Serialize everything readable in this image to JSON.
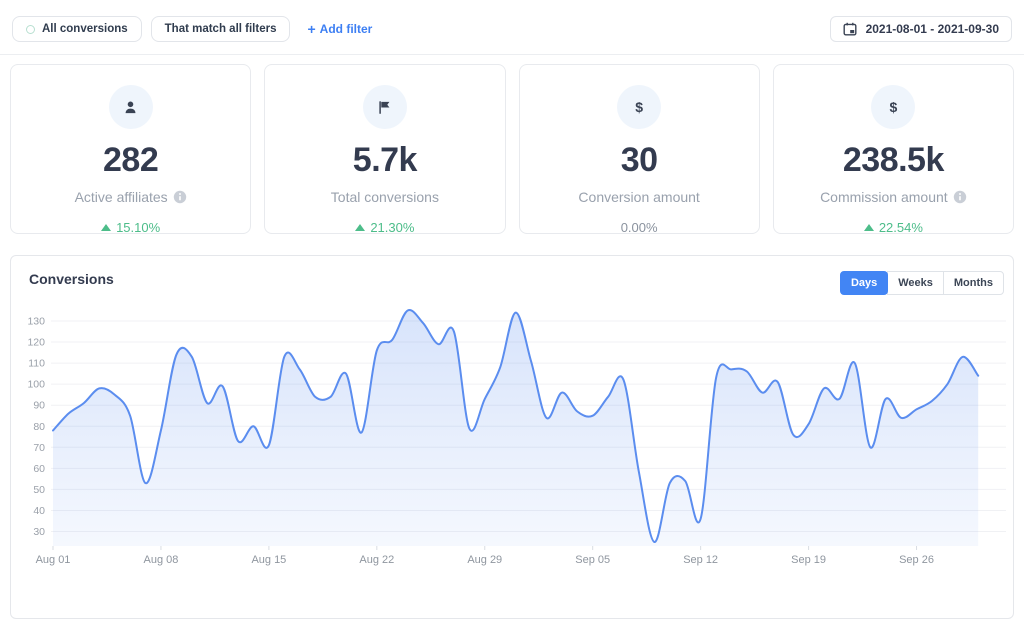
{
  "toolbar": {
    "all_conversions_label": "All conversions",
    "match_filters_label": "That match all filters",
    "add_filter_plus": "+",
    "add_filter_label": "Add filter",
    "date_range": "2021-08-01 - 2021-09-30"
  },
  "stats": {
    "cards": [
      {
        "icon": "user-icon",
        "value": "282",
        "label": "Active affiliates",
        "has_info": true,
        "change": "15.10%",
        "trend": "up"
      },
      {
        "icon": "flag-icon",
        "value": "5.7k",
        "label": "Total conversions",
        "has_info": false,
        "change": "21.30%",
        "trend": "up"
      },
      {
        "icon": "dollar-icon",
        "value": "30",
        "label": "Conversion amount",
        "has_info": false,
        "change": "0.00%",
        "trend": "flat"
      },
      {
        "icon": "dollar-icon",
        "value": "238.5k",
        "label": "Commission amount",
        "has_info": true,
        "change": "22.54%",
        "trend": "up"
      }
    ]
  },
  "panel": {
    "title": "Conversions",
    "range_tabs": [
      {
        "label": "Days",
        "active": true
      },
      {
        "label": "Weeks",
        "active": false
      },
      {
        "label": "Months",
        "active": false
      }
    ]
  },
  "colors": {
    "accent_blue": "#3d7ff3",
    "active_tab_blue": "#4285f4",
    "positive_green": "#4dbd8a",
    "chart_line_blue": "#5b8def"
  },
  "chart_data": {
    "type": "area",
    "title": "Conversions",
    "x_unit": "day",
    "x_tick_every": 7,
    "x_tick_labels": [
      "Aug 01",
      "Aug 08",
      "Aug 15",
      "Aug 22",
      "Aug 29",
      "Sep 05",
      "Sep 12",
      "Sep 19",
      "Sep 26"
    ],
    "y_ticks": [
      30,
      40,
      50,
      60,
      70,
      80,
      90,
      100,
      110,
      120,
      130
    ],
    "ylim": [
      24,
      136
    ],
    "grid": true,
    "legend": false,
    "line_color": "#5b8def",
    "area_top_color": "rgba(91,141,239,0.24)",
    "area_bottom_color": "rgba(91,141,239,0.06)",
    "values": [
      78,
      86,
      91,
      98,
      95,
      85,
      53,
      78,
      114,
      113,
      91,
      99,
      73,
      80,
      71,
      113,
      107,
      94,
      94,
      105,
      77,
      116,
      121,
      135,
      129,
      119,
      125,
      79,
      93,
      108,
      134,
      111,
      84,
      96,
      87,
      85,
      94,
      102,
      58,
      25,
      53,
      54,
      36,
      103,
      107,
      106,
      96,
      101,
      76,
      81,
      98,
      93,
      110,
      70,
      93,
      84,
      88,
      92,
      100,
      113,
      104
    ]
  }
}
